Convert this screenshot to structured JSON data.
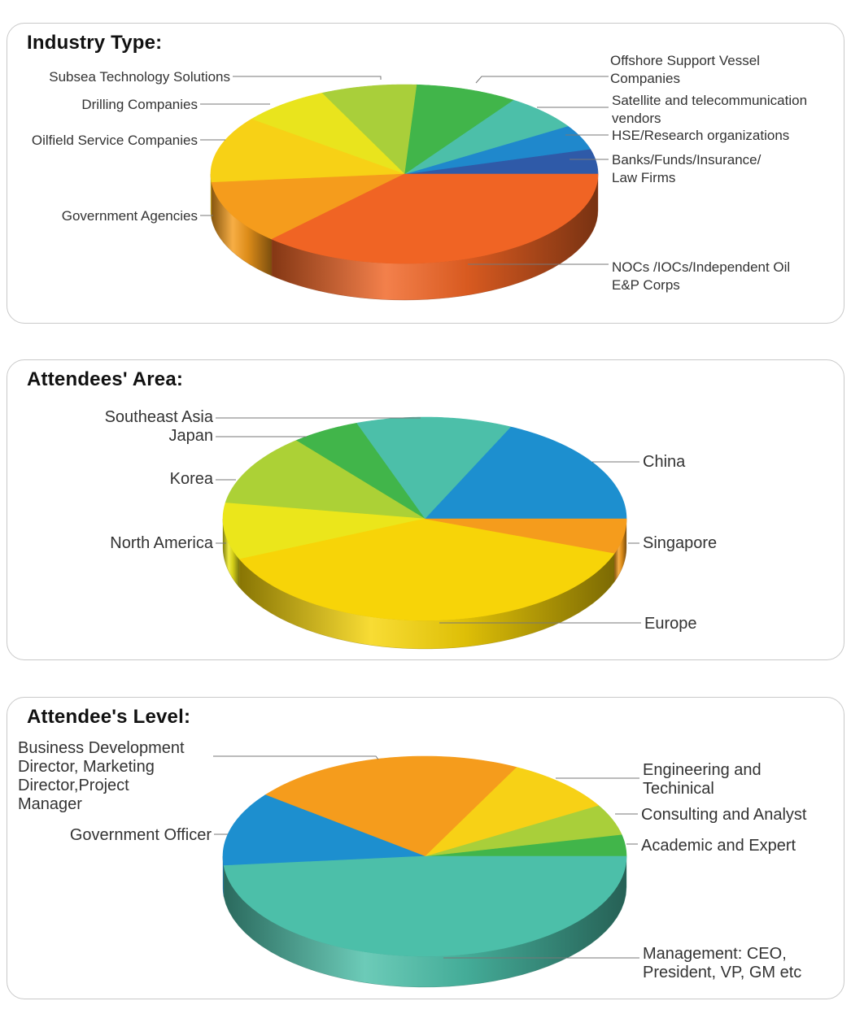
{
  "chart_data": [
    {
      "type": "pie",
      "title": "Industry Type:",
      "slices": [
        {
          "label": "Banks/Funds/Insurance/\nLaw Firms",
          "value": 4.5,
          "color": "#2f5aa8"
        },
        {
          "label": "HSE/Research organizations",
          "value": 4.5,
          "color": "#1f88cc"
        },
        {
          "label": "Satellite and telecommunication\nvendors",
          "value": 6.5,
          "color": "#4cbfa9"
        },
        {
          "label": "Offshore Support Vessel\nCompanies",
          "value": 8.5,
          "color": "#41b54a"
        },
        {
          "label": "Subsea Technology Solutions",
          "value": 8.0,
          "color": "#a9cf3a"
        },
        {
          "label": "Drilling Companies",
          "value": 7.5,
          "color": "#e9e41d"
        },
        {
          "label": "Oilfield Service Companies",
          "value": 12.0,
          "color": "#f7d116"
        },
        {
          "label": "Government Agencies",
          "value": 11.5,
          "color": "#f59c1c"
        },
        {
          "label": "NOCs /IOCs/Independent Oil\nE&P Corps",
          "value": 37.0,
          "color": "#f06424"
        }
      ]
    },
    {
      "type": "pie",
      "title": "Attendees' Area:",
      "slices": [
        {
          "label": "China",
          "value": 18.0,
          "color": "#1d8fcf"
        },
        {
          "label": "Southeast Asia",
          "value": 12.5,
          "color": "#4cbfa9"
        },
        {
          "label": "Japan",
          "value": 5.5,
          "color": "#41b54a"
        },
        {
          "label": "Korea",
          "value": 11.5,
          "color": "#acd136"
        },
        {
          "label": "North America",
          "value": 9.0,
          "color": "#ebe61b"
        },
        {
          "label": "Europe",
          "value": 38.0,
          "color": "#f7d408"
        },
        {
          "label": "Singapore",
          "value": 5.5,
          "color": "#f59c1c"
        }
      ]
    },
    {
      "type": "pie",
      "title": "Attendee's Level:",
      "slices": [
        {
          "label": "Academic and Expert",
          "value": 3.5,
          "color": "#41b54a"
        },
        {
          "label": "Consulting and Analyst",
          "value": 5.0,
          "color": "#a9cf3a"
        },
        {
          "label": "Engineering and\nTechinical",
          "value": 9.0,
          "color": "#f7d116"
        },
        {
          "label": "Business Development\nDirector, Marketing\nDirector,Project\nManager",
          "value": 22.0,
          "color": "#f59c1c"
        },
        {
          "label": "Government Officer",
          "value": 12.0,
          "color": "#1d8fcf"
        },
        {
          "label": "Management: CEO,\nPresident, VP, GM etc",
          "value": 48.5,
          "color": "#4cbfa9"
        }
      ]
    }
  ]
}
